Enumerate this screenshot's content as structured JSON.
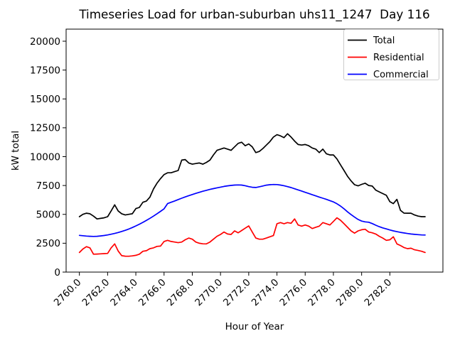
{
  "chart_data": {
    "type": "line",
    "title": "Timeseries Load for urban-suburban uhs11_1247  Day 116",
    "xlabel": "Hour of Year",
    "ylabel": "kW total",
    "xlim": [
      2759.06,
      2785.76
    ],
    "ylim": [
      0,
      21046
    ],
    "grid": false,
    "legend_position": "upper right",
    "legend_edge_color": "#cccccc",
    "background_color": "#ffffff",
    "xticks": [
      2760,
      2762,
      2764,
      2766,
      2768,
      2770,
      2772,
      2774,
      2776,
      2778,
      2780,
      2782
    ],
    "xtick_labels": [
      "2760.0",
      "2762.0",
      "2764.0",
      "2766.0",
      "2768.0",
      "2770.0",
      "2772.0",
      "2774.0",
      "2776.0",
      "2778.0",
      "2780.0",
      "2782.0"
    ],
    "yticks": [
      0,
      2500,
      5000,
      7500,
      10000,
      12500,
      15000,
      17500,
      20000
    ],
    "x_start": 2760.0,
    "x_step": 0.25,
    "series": [
      {
        "name": "Total",
        "color": "#000000",
        "values": [
          4800,
          5000,
          5100,
          5050,
          4850,
          4600,
          4650,
          4700,
          4800,
          5300,
          5830,
          5300,
          5050,
          4950,
          5000,
          5050,
          5500,
          5600,
          6050,
          6150,
          6500,
          7200,
          7700,
          8100,
          8450,
          8600,
          8600,
          8700,
          8800,
          9700,
          9750,
          9450,
          9350,
          9400,
          9450,
          9350,
          9500,
          9700,
          10150,
          10550,
          10650,
          10750,
          10650,
          10550,
          10850,
          11150,
          11250,
          10950,
          11100,
          10850,
          10350,
          10450,
          10700,
          11000,
          11300,
          11700,
          11900,
          11800,
          11650,
          11980,
          11700,
          11350,
          11050,
          11000,
          11050,
          10950,
          10750,
          10650,
          10350,
          10650,
          10250,
          10150,
          10150,
          9800,
          9300,
          8800,
          8300,
          7900,
          7570,
          7470,
          7600,
          7700,
          7500,
          7450,
          7100,
          6950,
          6800,
          6650,
          6100,
          5930,
          6300,
          5350,
          5110,
          5100,
          5100,
          4950,
          4850,
          4800,
          4800
        ]
      },
      {
        "name": "Residential",
        "color": "#ff0000",
        "values": [
          1700,
          2000,
          2200,
          2100,
          1550,
          1560,
          1580,
          1600,
          1620,
          2100,
          2440,
          1830,
          1420,
          1380,
          1370,
          1400,
          1450,
          1550,
          1800,
          1850,
          2030,
          2100,
          2230,
          2250,
          2650,
          2750,
          2650,
          2600,
          2550,
          2600,
          2800,
          2950,
          2850,
          2600,
          2500,
          2450,
          2440,
          2600,
          2850,
          3100,
          3260,
          3470,
          3300,
          3260,
          3570,
          3400,
          3600,
          3800,
          4000,
          3470,
          2950,
          2850,
          2850,
          2950,
          3060,
          3160,
          4190,
          4290,
          4190,
          4290,
          4230,
          4600,
          4080,
          3980,
          4080,
          3980,
          3770,
          3880,
          3980,
          4290,
          4190,
          4080,
          4390,
          4700,
          4490,
          4190,
          3880,
          3570,
          3370,
          3570,
          3670,
          3710,
          3470,
          3400,
          3300,
          3100,
          2950,
          2750,
          2800,
          3060,
          2440,
          2300,
          2130,
          2030,
          2070,
          1930,
          1870,
          1800,
          1700
        ]
      },
      {
        "name": "Commercial",
        "color": "#0000ff",
        "values": [
          3180,
          3150,
          3120,
          3100,
          3090,
          3100,
          3130,
          3170,
          3220,
          3280,
          3350,
          3430,
          3520,
          3620,
          3730,
          3860,
          4000,
          4150,
          4310,
          4480,
          4660,
          4850,
          5050,
          5260,
          5480,
          5930,
          6050,
          6160,
          6280,
          6400,
          6510,
          6620,
          6720,
          6820,
          6910,
          7000,
          7080,
          7160,
          7230,
          7300,
          7360,
          7420,
          7470,
          7510,
          7540,
          7550,
          7540,
          7480,
          7400,
          7350,
          7330,
          7390,
          7460,
          7530,
          7570,
          7590,
          7580,
          7540,
          7480,
          7400,
          7320,
          7220,
          7120,
          7020,
          6910,
          6810,
          6700,
          6600,
          6500,
          6400,
          6300,
          6190,
          6080,
          5920,
          5720,
          5480,
          5220,
          4980,
          4760,
          4560,
          4420,
          4350,
          4320,
          4200,
          4060,
          3930,
          3830,
          3740,
          3650,
          3570,
          3500,
          3440,
          3390,
          3340,
          3300,
          3270,
          3240,
          3220,
          3210
        ]
      }
    ]
  }
}
